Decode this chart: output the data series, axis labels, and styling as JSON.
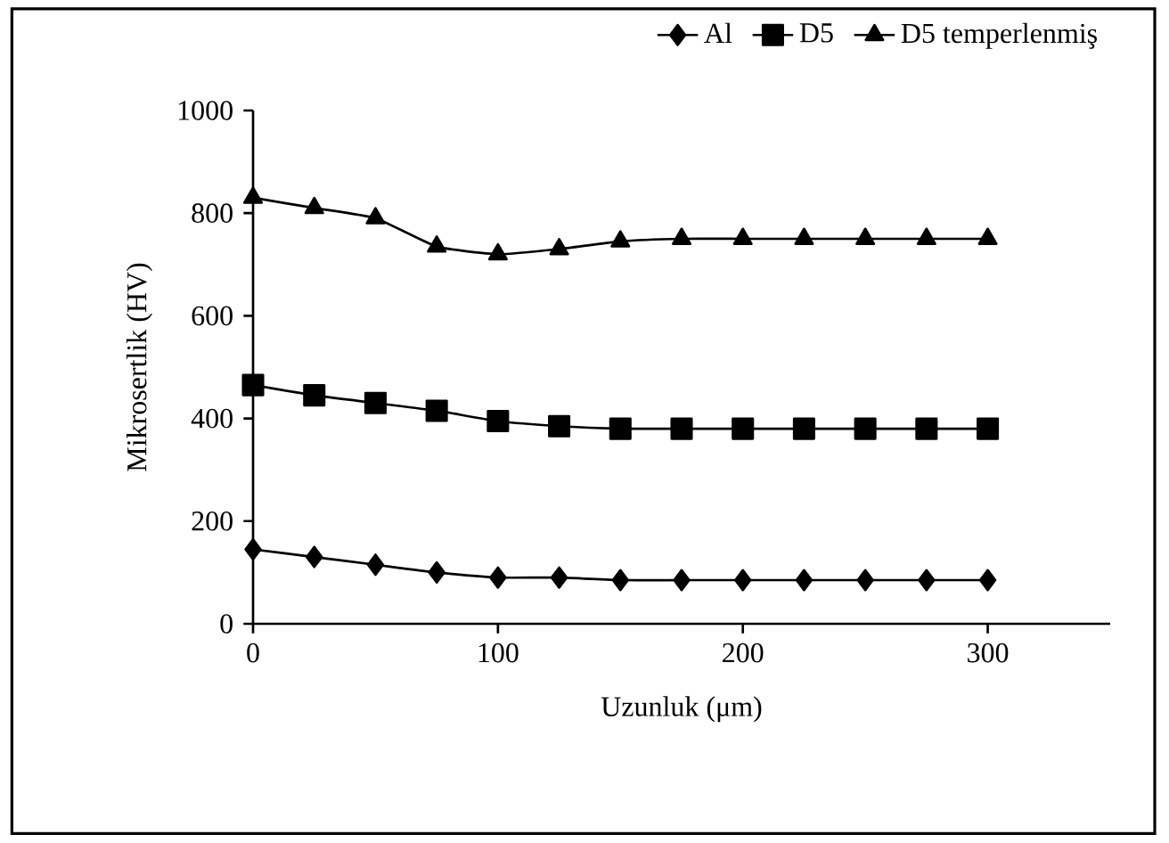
{
  "chart_data": {
    "type": "line",
    "xlabel": "Uzunluk (μm)",
    "ylabel": "Mikrosertlik (HV)",
    "x": [
      0,
      25,
      50,
      75,
      100,
      125,
      150,
      175,
      200,
      225,
      250,
      275,
      300
    ],
    "series": [
      {
        "name": "Al",
        "color": "#000000",
        "marker": "diamond",
        "values": [
          145,
          130,
          115,
          100,
          90,
          90,
          85,
          85,
          85,
          85,
          85,
          85,
          85
        ]
      },
      {
        "name": "D5",
        "color": "#000000",
        "marker": "square",
        "values": [
          465,
          445,
          430,
          415,
          395,
          385,
          380,
          380,
          380,
          380,
          380,
          380,
          380
        ]
      },
      {
        "name": "D5 temperlenmiş",
        "color": "#000000",
        "marker": "triangle",
        "values": [
          830,
          810,
          790,
          735,
          720,
          730,
          745,
          750,
          750,
          750,
          750,
          750,
          750
        ]
      }
    ],
    "xlim": [
      0,
      350
    ],
    "xticks": [
      0,
      100,
      200,
      300
    ],
    "ylim": [
      0,
      1000
    ],
    "yticks": [
      0,
      200,
      400,
      600,
      800,
      1000
    ],
    "grid": false,
    "legend": "top",
    "line_style": "solid"
  }
}
